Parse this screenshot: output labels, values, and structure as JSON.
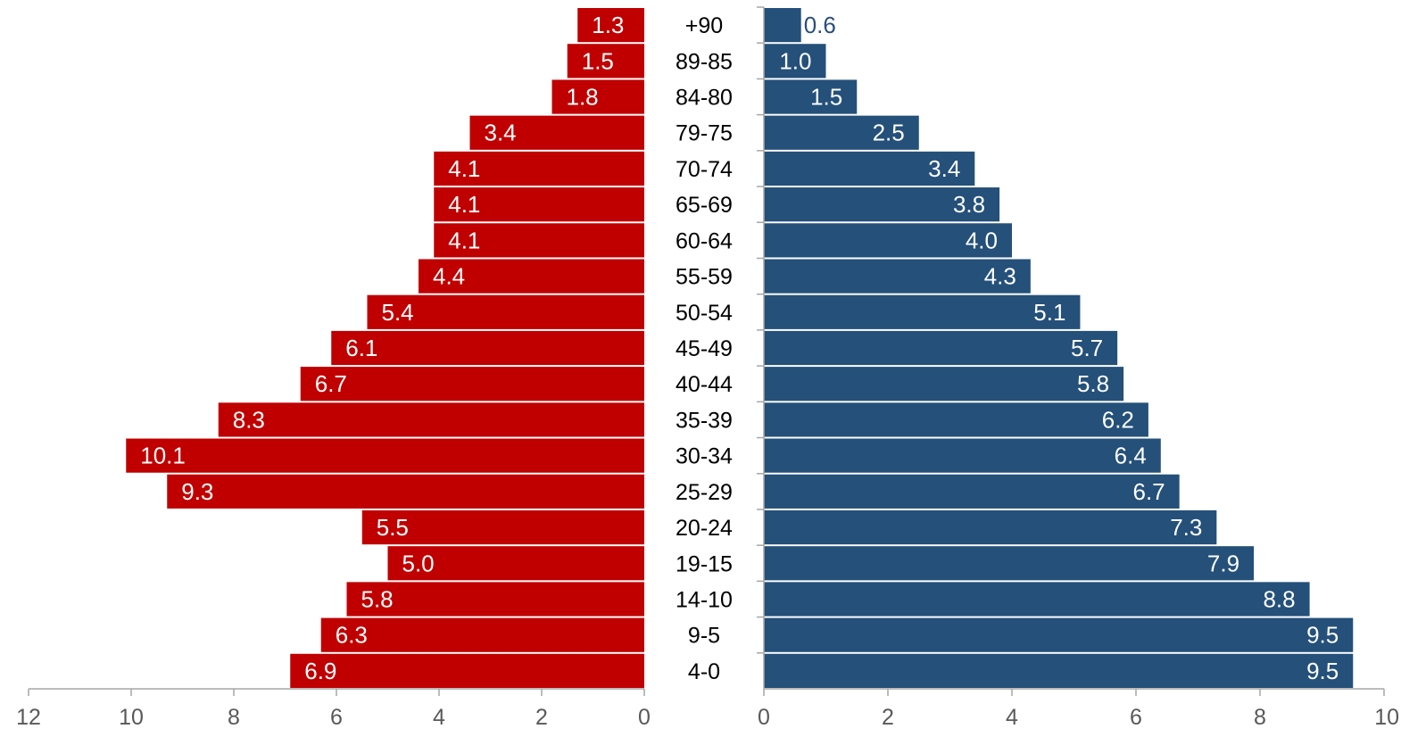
{
  "chart_data": [
    {
      "type": "bar",
      "orientation": "horizontal",
      "direction": "leftward",
      "color": "#c00000",
      "categories": [
        "+90",
        "89-85",
        "84-80",
        "79-75",
        "70-74",
        "65-69",
        "60-64",
        "55-59",
        "50-54",
        "45-49",
        "40-44",
        "35-39",
        "30-34",
        "25-29",
        "20-24",
        "19-15",
        "14-10",
        "9-5",
        "4-0"
      ],
      "values": [
        1.3,
        1.5,
        1.8,
        3.4,
        4.1,
        4.1,
        4.1,
        4.4,
        5.4,
        6.1,
        6.7,
        8.3,
        10.1,
        9.3,
        5.5,
        5.0,
        5.8,
        6.3,
        6.9
      ],
      "value_labels": [
        "1.3",
        "1.5",
        "1.8",
        "3.4",
        "4.1",
        "4.1",
        "4.1",
        "4.4",
        "5.4",
        "6.1",
        "6.7",
        "8.3",
        "10.1",
        "9.3",
        "5.5",
        "5.0",
        "5.8",
        "6.3",
        "6.9"
      ],
      "xlim": [
        0,
        12
      ],
      "xticks": [
        "12",
        "10",
        "8",
        "6",
        "4",
        "2",
        "0"
      ],
      "grid": false
    },
    {
      "type": "bar",
      "orientation": "horizontal",
      "direction": "rightward",
      "color": "#24507a",
      "categories": [
        "+90",
        "89-85",
        "84-80",
        "79-75",
        "70-74",
        "65-69",
        "60-64",
        "55-59",
        "50-54",
        "45-49",
        "40-44",
        "35-39",
        "30-34",
        "25-29",
        "20-24",
        "19-15",
        "14-10",
        "9-5",
        "4-0"
      ],
      "values": [
        0.6,
        1.0,
        1.5,
        2.5,
        3.4,
        3.8,
        4.0,
        4.3,
        5.1,
        5.7,
        5.8,
        6.2,
        6.4,
        6.7,
        7.3,
        7.9,
        8.8,
        9.5,
        9.5
      ],
      "value_labels": [
        "0.6",
        "1.0",
        "1.5",
        "2.5",
        "3.4",
        "3.8",
        "4.0",
        "4.3",
        "5.1",
        "5.7",
        "5.8",
        "6.2",
        "6.4",
        "6.7",
        "7.3",
        "7.9",
        "8.8",
        "9.5",
        "9.5"
      ],
      "xlim": [
        0,
        10
      ],
      "xticks": [
        "0",
        "2",
        "4",
        "6",
        "8",
        "10"
      ],
      "grid": false
    }
  ]
}
